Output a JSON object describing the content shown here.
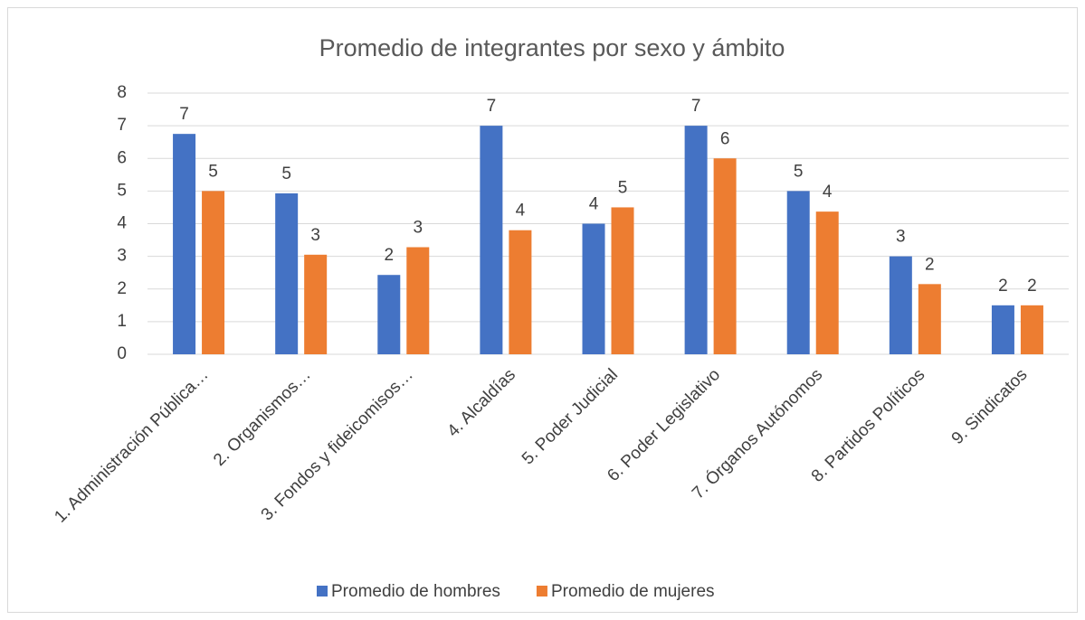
{
  "chart_data": {
    "type": "bar",
    "title": "Promedio de integrantes por sexo y ámbito",
    "categories": [
      "1. Administración Pública…",
      "2. Organismos…",
      "3. Fondos y fideicomisos…",
      "4. Alcaldías",
      "5. Poder Judicial",
      "6. Poder Legislativo",
      "7. Órganos Autónomos",
      "8. Partidos Políticos",
      "9. Sindicatos"
    ],
    "series": [
      {
        "name": "Promedio de hombres",
        "color": "#4472c4",
        "values": [
          6.75,
          4.93,
          2.43,
          7.0,
          4.0,
          7.0,
          5.0,
          3.0,
          1.5
        ],
        "value_labels": [
          "7",
          "5",
          "2",
          "7",
          "4",
          "7",
          "5",
          "3",
          "2"
        ]
      },
      {
        "name": "Promedio de mujeres",
        "color": "#ed7d31",
        "values": [
          5.0,
          3.05,
          3.28,
          3.8,
          4.5,
          6.0,
          4.37,
          2.15,
          1.5
        ],
        "value_labels": [
          "5",
          "3",
          "3",
          "4",
          "5",
          "6",
          "4",
          "2",
          "2"
        ]
      }
    ],
    "ylim": [
      0,
      8
    ],
    "yticks": [
      0,
      1,
      2,
      3,
      4,
      5,
      6,
      7,
      8
    ],
    "grid": true,
    "legend": "bottom"
  }
}
